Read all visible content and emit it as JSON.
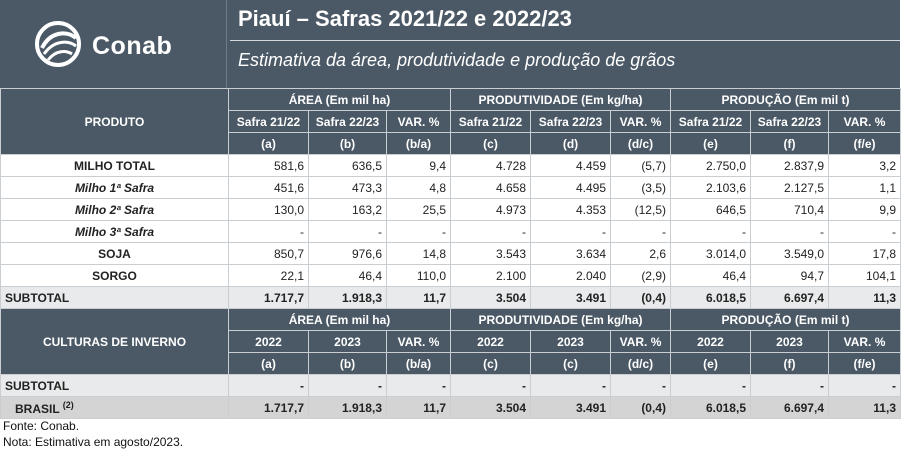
{
  "header": {
    "title": "Piauí – Safras 2021/22 e 2022/23",
    "subtitle": "Estimativa da área, produtividade e produção de grãos",
    "logo_text": "Conab"
  },
  "table1": {
    "product_header": "PRODUTO",
    "groups": [
      "ÁREA (Em mil ha)",
      "PRODUTIVIDADE (Em kg/ha)",
      "PRODUÇÃO (Em mil t)"
    ],
    "subheaders": [
      "Safra 21/22",
      "Safra 22/23",
      "VAR. %",
      "Safra 21/22",
      "Safra 22/23",
      "VAR. %",
      "Safra 21/22",
      "Safra 22/23",
      "VAR. %"
    ],
    "codes": [
      "(a)",
      "(b)",
      "(b/a)",
      "(c)",
      "(d)",
      "(d/c)",
      "(e)",
      "(f)",
      "(f/e)"
    ],
    "rows": [
      {
        "name": "MILHO TOTAL",
        "values": [
          "581,6",
          "636,5",
          "9,4",
          "4.728",
          "4.459",
          "(5,7)",
          "2.750,0",
          "2.837,9",
          "3,2"
        ]
      },
      {
        "name": "Milho 1ª Safra",
        "values": [
          "451,6",
          "473,3",
          "4,8",
          "4.658",
          "4.495",
          "(3,5)",
          "2.103,6",
          "2.127,5",
          "1,1"
        ]
      },
      {
        "name": "Milho 2ª Safra",
        "values": [
          "130,0",
          "163,2",
          "25,5",
          "4.973",
          "4.353",
          "(12,5)",
          "646,5",
          "710,4",
          "9,9"
        ]
      },
      {
        "name": "Milho 3ª Safra",
        "values": [
          "-",
          "-",
          "-",
          "-",
          "-",
          "-",
          "-",
          "-",
          "-"
        ]
      },
      {
        "name": "SOJA",
        "values": [
          "850,7",
          "976,6",
          "14,8",
          "3.543",
          "3.634",
          "2,6",
          "3.014,0",
          "3.549,0",
          "17,8"
        ]
      },
      {
        "name": "SORGO",
        "values": [
          "22,1",
          "46,4",
          "110,0",
          "2.100",
          "2.040",
          "(2,9)",
          "46,4",
          "94,7",
          "104,1"
        ]
      }
    ],
    "subtotal": {
      "name": "SUBTOTAL",
      "values": [
        "1.717,7",
        "1.918,3",
        "11,7",
        "3.504",
        "3.491",
        "(0,4)",
        "6.018,5",
        "6.697,4",
        "11,3"
      ]
    }
  },
  "table2": {
    "product_header": "CULTURAS DE INVERNO",
    "groups": [
      "ÁREA (Em mil ha)",
      "PRODUTIVIDADE (Em kg/ha)",
      "PRODUÇÃO (Em mil t)"
    ],
    "subheaders": [
      "2022",
      "2023",
      "VAR. %",
      "2022",
      "2023",
      "VAR. %",
      "2022",
      "2023",
      "VAR. %"
    ],
    "codes": [
      "(a)",
      "(b)",
      "(b/a)",
      "(c)",
      "(c)",
      "(d/c)",
      "(e)",
      "(f)",
      "(f/e)"
    ],
    "subtotal": {
      "name": "SUBTOTAL",
      "values": [
        "-",
        "-",
        "-",
        "-",
        "-",
        "-",
        "-",
        "-",
        "-"
      ]
    }
  },
  "brasil": {
    "name": "BRASIL",
    "note": "(2)",
    "values": [
      "1.717,7",
      "1.918,3",
      "11,7",
      "3.504",
      "3.491",
      "(0,4)",
      "6.018,5",
      "6.697,4",
      "11,3"
    ]
  },
  "footer": {
    "source": "Fonte: Conab.",
    "note": "Nota: Estimativa em agosto/2023."
  }
}
